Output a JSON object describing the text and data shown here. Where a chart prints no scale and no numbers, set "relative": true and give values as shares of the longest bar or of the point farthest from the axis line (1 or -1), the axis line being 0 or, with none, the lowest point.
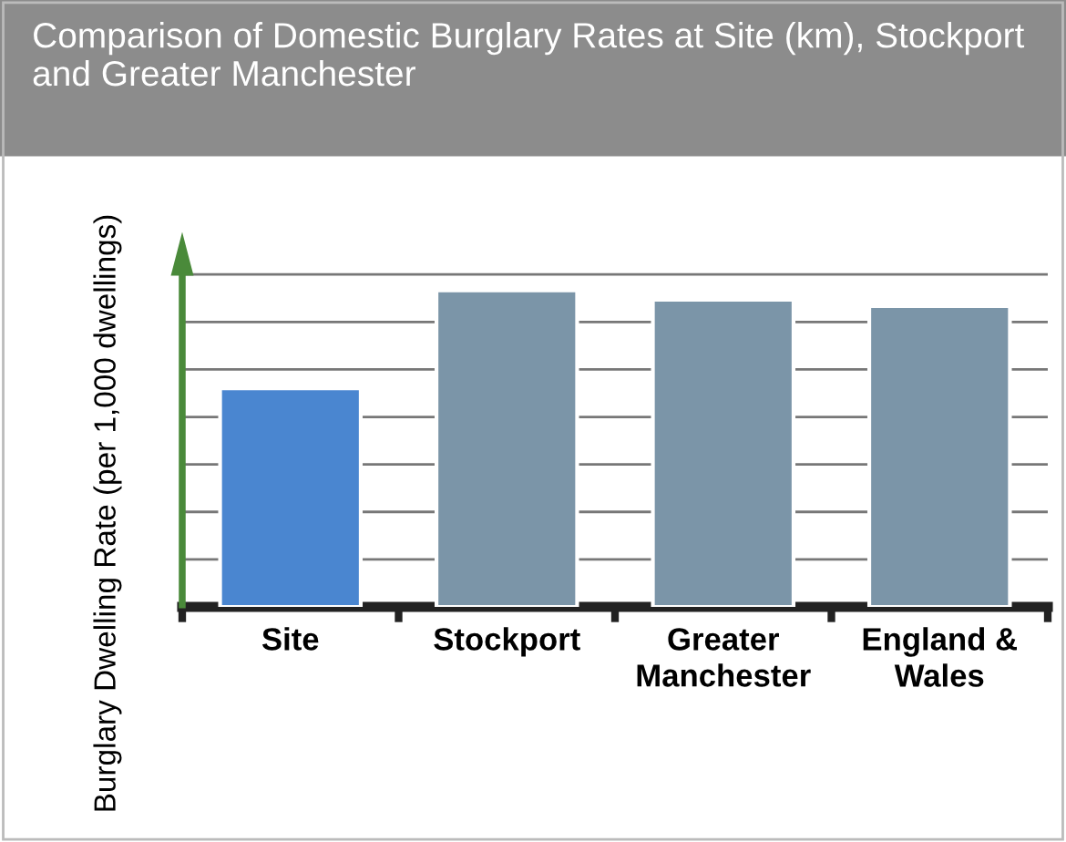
{
  "chart_data": {
    "type": "bar",
    "title": "Comparison of Domestic Burglary Rates at Site (km), Stockport and Greater Manchester",
    "ylabel": "Burglary Dwelling Rate (per 1,000 dwellings)",
    "categories": [
      "Site",
      "Stockport",
      "Greater Manchester",
      "England & Wales"
    ],
    "values": [
      0.69,
      1,
      0.97,
      0.95
    ],
    "colors": [
      "#4a86d0",
      "#7b95a8",
      "#7b95a8",
      "#7b95a8"
    ],
    "relative": true,
    "grid": "y"
  }
}
